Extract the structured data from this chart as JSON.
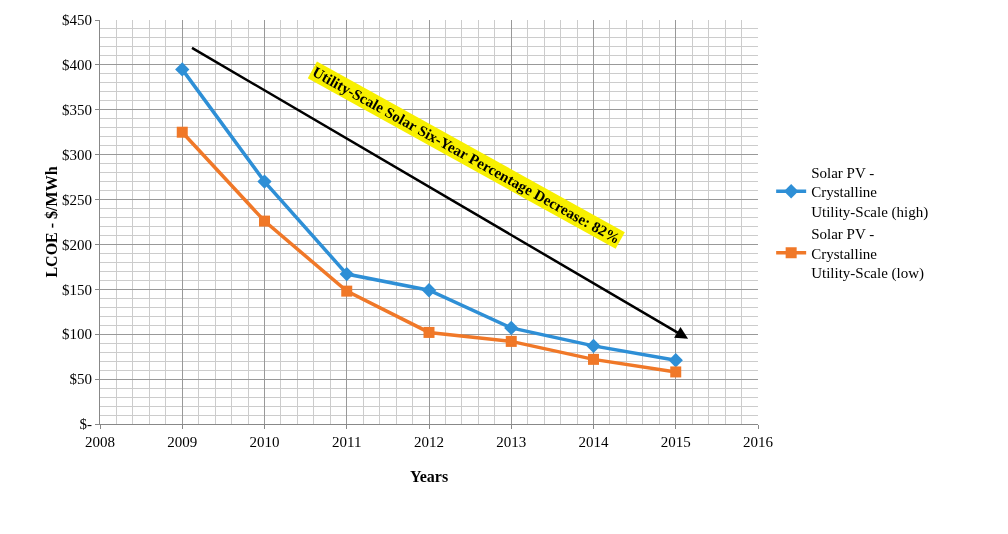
{
  "chart_data": {
    "type": "line",
    "xlabel": "Years",
    "ylabel": "LCOE - $/MWh",
    "x": [
      2009,
      2010,
      2011,
      2012,
      2013,
      2014,
      2015
    ],
    "series": [
      {
        "name": "Solar PV - Crystalline Utility-Scale (high)",
        "color": "#2e8fd6",
        "marker": "diamond",
        "values": [
          395,
          270,
          167,
          149,
          107,
          87,
          71
        ]
      },
      {
        "name": "Solar PV - Crystalline Utility-Scale (low)",
        "color": "#f07828",
        "marker": "square",
        "values": [
          325,
          226,
          148,
          102,
          92,
          72,
          58
        ]
      }
    ],
    "xlim": [
      2008,
      2016
    ],
    "xticks": [
      2008,
      2009,
      2010,
      2011,
      2012,
      2013,
      2014,
      2015,
      2016
    ],
    "ylim": [
      0,
      450
    ],
    "yticks": [
      {
        "value": 0,
        "label": "$-"
      },
      {
        "value": 50,
        "label": "$50"
      },
      {
        "value": 100,
        "label": "$100"
      },
      {
        "value": 150,
        "label": "$150"
      },
      {
        "value": 200,
        "label": "$200"
      },
      {
        "value": 250,
        "label": "$250"
      },
      {
        "value": 300,
        "label": "$300"
      },
      {
        "value": 350,
        "label": "$350"
      },
      {
        "value": 400,
        "label": "$400"
      },
      {
        "value": 450,
        "label": "$450"
      }
    ],
    "annotations": [
      "Utility-Scale Solar Six-Year Percentage Decrease: 82%"
    ],
    "grid": true,
    "legend": "right",
    "line_style": "solid"
  }
}
